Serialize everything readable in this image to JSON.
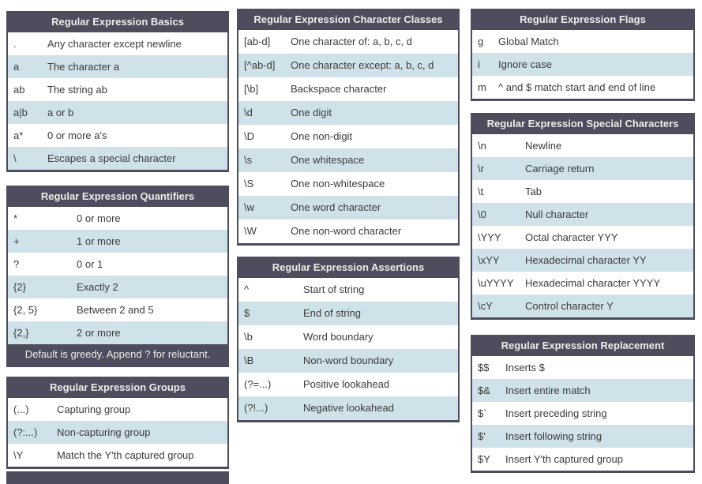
{
  "theme": {
    "header_bg": "#4e4d5d",
    "header_text_color": "#ececec",
    "alt_row_bg": "#cfe1e9",
    "row_bg": "#ffffff",
    "row_text_color": "#3b3b3b"
  },
  "columns": [
    {
      "tables": [
        {
          "id": "basics",
          "title": "Regular Expression Basics",
          "rows": [
            {
              "symbol": ".",
              "description": "Any character except newline"
            },
            {
              "symbol": "a",
              "description": "The character a"
            },
            {
              "symbol": "ab",
              "description": "The string ab"
            },
            {
              "symbol": "a|b",
              "description": "a or b"
            },
            {
              "symbol": "a*",
              "description": "0 or more a's"
            },
            {
              "symbol": "\\",
              "description": "Escapes a special character"
            }
          ]
        },
        {
          "id": "quantifiers",
          "title": "Regular Expression Quantifiers",
          "rows": [
            {
              "symbol": "*",
              "description": "0 or more"
            },
            {
              "symbol": "+",
              "description": "1 or more"
            },
            {
              "symbol": "?",
              "description": "0 or 1"
            },
            {
              "symbol": "{2}",
              "description": "Exactly 2"
            },
            {
              "symbol": "{2, 5}",
              "description": "Between 2 and 5"
            },
            {
              "symbol": "{2,}",
              "description": "2 or more"
            }
          ],
          "footer": "Default is greedy. Append ? for reluctant."
        },
        {
          "id": "groups",
          "title": "Regular Expression Groups",
          "rows": [
            {
              "symbol": "(...)",
              "description": "Capturing group"
            },
            {
              "symbol": "(?:...)",
              "description": "Non-capturing group"
            },
            {
              "symbol": "\\Y",
              "description": "Match the Y'th captured group"
            }
          ]
        }
      ]
    },
    {
      "tables": [
        {
          "id": "charclasses",
          "title": "Regular Expression Character Classes",
          "rows": [
            {
              "symbol": "[ab-d]",
              "description": "One character of: a, b, c, d"
            },
            {
              "symbol": "[^ab-d]",
              "description": "One character except: a, b, c, d"
            },
            {
              "symbol": "[\\b]",
              "description": "Backspace character"
            },
            {
              "symbol": "\\d",
              "description": "One digit"
            },
            {
              "symbol": "\\D",
              "description": "One non-digit"
            },
            {
              "symbol": "\\s",
              "description": "One whitespace"
            },
            {
              "symbol": "\\S",
              "description": "One non-whitespace"
            },
            {
              "symbol": "\\w",
              "description": "One word character"
            },
            {
              "symbol": "\\W",
              "description": "One non-word character"
            }
          ]
        },
        {
          "id": "assertions",
          "title": "Regular Expression Assertions",
          "rows": [
            {
              "symbol": "^",
              "description": "Start of string"
            },
            {
              "symbol": "$",
              "description": "End of string"
            },
            {
              "symbol": "\\b",
              "description": "Word boundary"
            },
            {
              "symbol": "\\B",
              "description": "Non-word boundary"
            },
            {
              "symbol": "(?=...)",
              "description": "Positive lookahead"
            },
            {
              "symbol": "(?!...)",
              "description": "Negative lookahead"
            }
          ]
        }
      ]
    },
    {
      "tables": [
        {
          "id": "flags",
          "title": "Regular Expression Flags",
          "rows": [
            {
              "symbol": "g",
              "description": "Global Match"
            },
            {
              "symbol": "i",
              "description": "Ignore case"
            },
            {
              "symbol": "m",
              "description": "^ and $ match start and end of line"
            }
          ]
        },
        {
          "id": "special",
          "title": "Regular Expression Special Characters",
          "rows": [
            {
              "symbol": "\\n",
              "description": "Newline"
            },
            {
              "symbol": "\\r",
              "description": "Carriage return"
            },
            {
              "symbol": "\\t",
              "description": "Tab"
            },
            {
              "symbol": "\\0",
              "description": "Null character"
            },
            {
              "symbol": "\\YYY",
              "description": "Octal character YYY"
            },
            {
              "symbol": "\\xYY",
              "description": "Hexadecimal character YY"
            },
            {
              "symbol": "\\uYYYY",
              "description": "Hexadecimal character YYYY"
            },
            {
              "symbol": "\\cY",
              "description": "Control character Y"
            }
          ]
        },
        {
          "id": "replacement",
          "title": "Regular Expression Replacement",
          "rows": [
            {
              "symbol": "$$",
              "description": "Inserts $"
            },
            {
              "symbol": "$&",
              "description": "Insert entire match"
            },
            {
              "symbol": "$`",
              "description": "Insert preceding string"
            },
            {
              "symbol": "$'",
              "description": "Insert following string"
            },
            {
              "symbol": "$Y",
              "description": "Insert Y'th captured group"
            }
          ]
        }
      ]
    }
  ]
}
